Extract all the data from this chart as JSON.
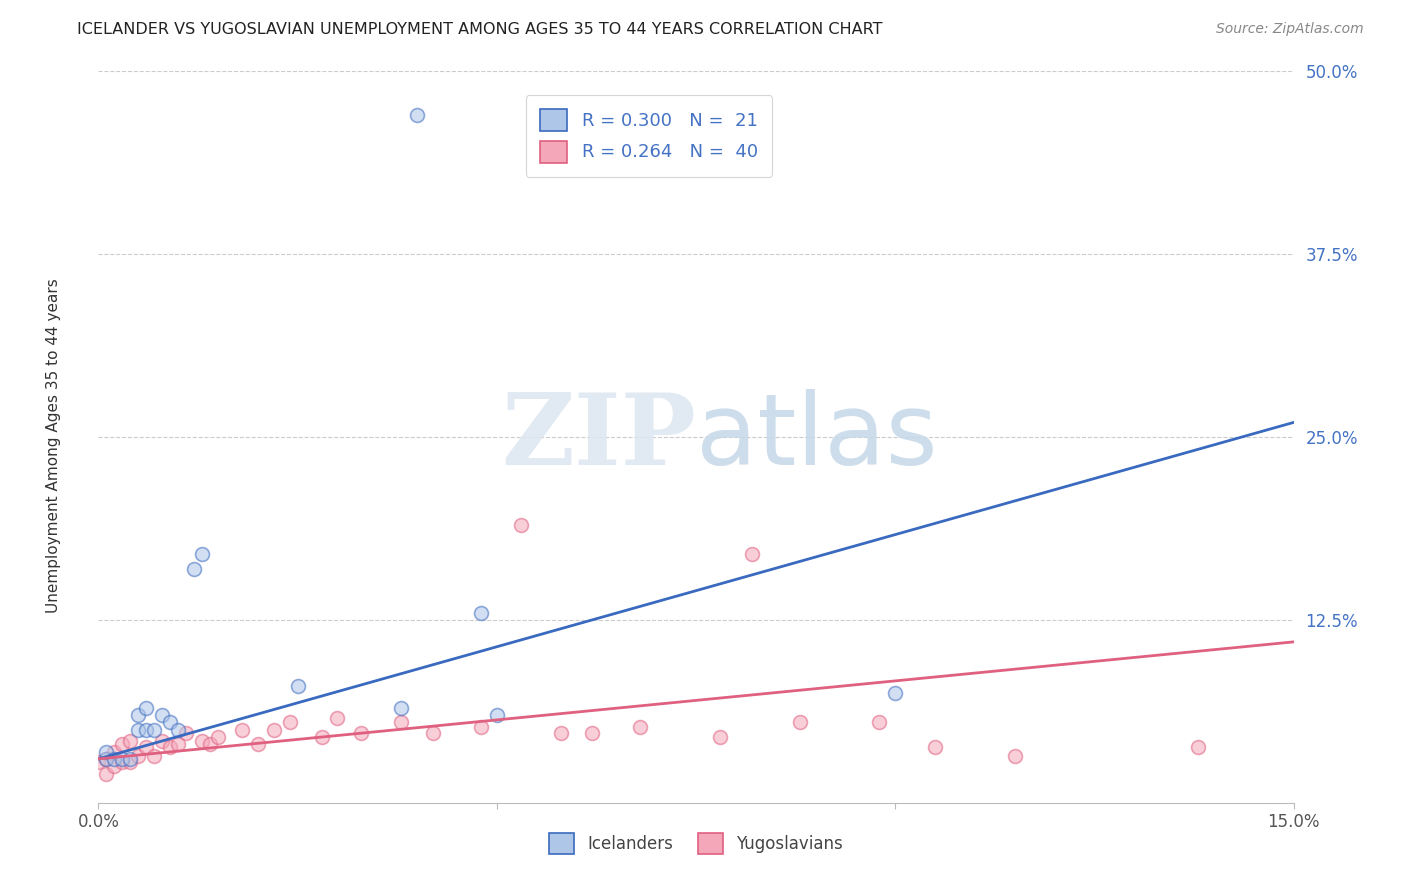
{
  "title": "ICELANDER VS YUGOSLAVIAN UNEMPLOYMENT AMONG AGES 35 TO 44 YEARS CORRELATION CHART",
  "source": "Source: ZipAtlas.com",
  "ylabel": "Unemployment Among Ages 35 to 44 years",
  "xlim": [
    0.0,
    0.15
  ],
  "ylim": [
    0.0,
    0.5
  ],
  "icelander_x": [
    0.001,
    0.001,
    0.002,
    0.003,
    0.004,
    0.005,
    0.005,
    0.006,
    0.006,
    0.007,
    0.008,
    0.009,
    0.01,
    0.012,
    0.013,
    0.025,
    0.038,
    0.048,
    0.05,
    0.1,
    0.04
  ],
  "icelander_y": [
    0.03,
    0.035,
    0.03,
    0.03,
    0.03,
    0.05,
    0.06,
    0.05,
    0.065,
    0.05,
    0.06,
    0.055,
    0.05,
    0.16,
    0.17,
    0.08,
    0.065,
    0.13,
    0.06,
    0.075,
    0.47
  ],
  "yugoslavian_x": [
    0.0,
    0.001,
    0.001,
    0.002,
    0.002,
    0.003,
    0.003,
    0.004,
    0.004,
    0.005,
    0.006,
    0.007,
    0.008,
    0.009,
    0.01,
    0.011,
    0.013,
    0.014,
    0.015,
    0.018,
    0.02,
    0.022,
    0.024,
    0.028,
    0.03,
    0.033,
    0.038,
    0.042,
    0.048,
    0.053,
    0.058,
    0.062,
    0.068,
    0.078,
    0.082,
    0.088,
    0.098,
    0.105,
    0.115,
    0.138
  ],
  "yugoslavian_y": [
    0.028,
    0.02,
    0.03,
    0.025,
    0.035,
    0.028,
    0.04,
    0.028,
    0.042,
    0.032,
    0.038,
    0.032,
    0.042,
    0.038,
    0.04,
    0.048,
    0.042,
    0.04,
    0.045,
    0.05,
    0.04,
    0.05,
    0.055,
    0.045,
    0.058,
    0.048,
    0.055,
    0.048,
    0.052,
    0.19,
    0.048,
    0.048,
    0.052,
    0.045,
    0.17,
    0.055,
    0.055,
    0.038,
    0.032,
    0.038
  ],
  "icelander_color": "#aec6e8",
  "yugoslavian_color": "#f4a7b9",
  "icelander_line_color": "#3a6abf",
  "yugoslavian_line_color": "#e06080",
  "background_color": "#ffffff",
  "grid_color": "#cccccc",
  "title_color": "#222222",
  "source_color": "#888888",
  "ytick_color": "#4472c4",
  "marker_size": 100,
  "marker_alpha": 0.55,
  "marker_edge_width": 1.2,
  "reg_line_icel_x0": 0.0,
  "reg_line_icel_y0": 0.03,
  "reg_line_icel_x1": 0.15,
  "reg_line_icel_y1": 0.26,
  "reg_line_yugo_x0": 0.0,
  "reg_line_yugo_y0": 0.03,
  "reg_line_yugo_x1": 0.15,
  "reg_line_yugo_y1": 0.11
}
